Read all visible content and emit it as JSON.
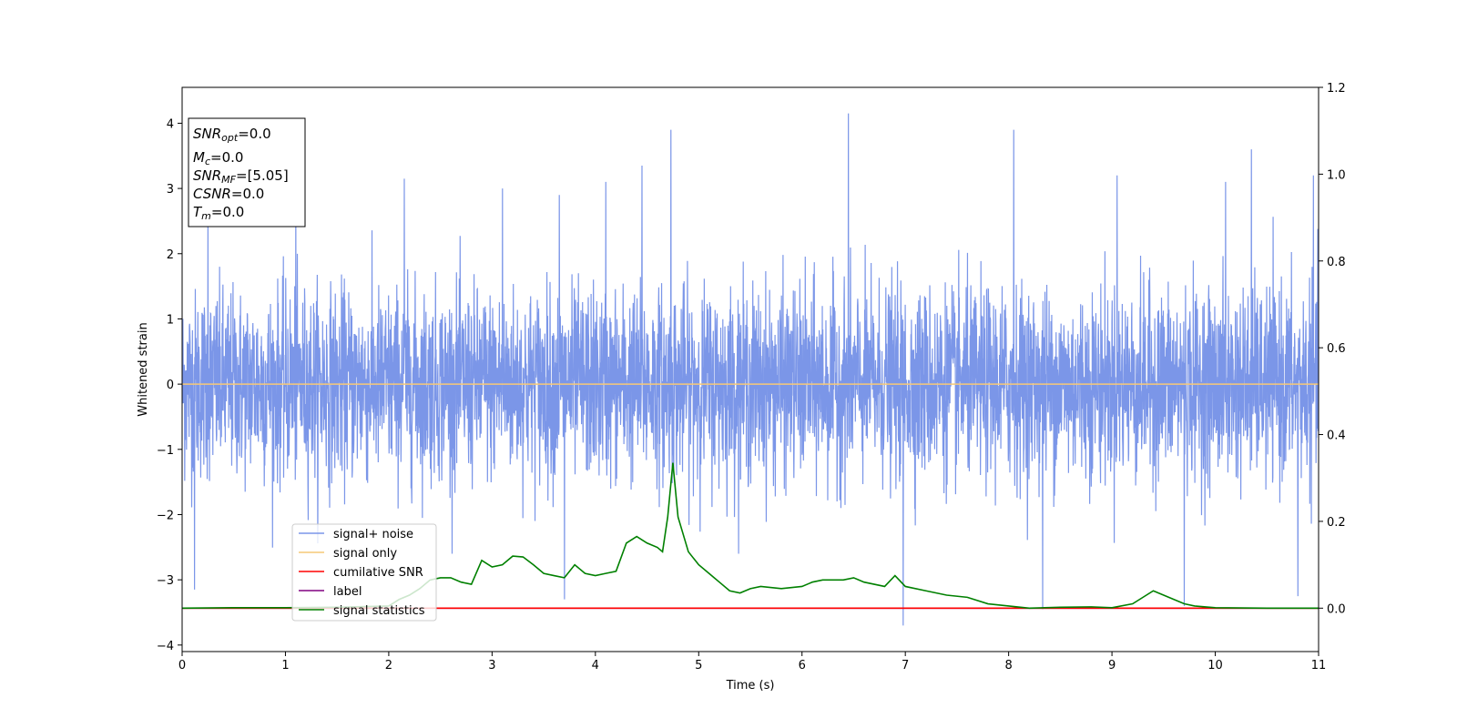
{
  "chart_data": {
    "type": "line",
    "title": "",
    "xlabel": "Time (s)",
    "ylabel": "Whitened strain",
    "xlim": [
      0,
      11
    ],
    "ylim": [
      -4.1,
      4.55
    ],
    "y2lim": [
      -0.1,
      1.2
    ],
    "grid": false,
    "x_ticks": [
      "0",
      "1",
      "2",
      "3",
      "4",
      "5",
      "6",
      "7",
      "8",
      "9",
      "10",
      "11"
    ],
    "y_ticks": [
      "−4",
      "−3",
      "−2",
      "−1",
      "0",
      "1",
      "2",
      "3",
      "4"
    ],
    "y2_ticks": [
      "0.0",
      "0.2",
      "0.4",
      "0.6",
      "0.8",
      "1.0",
      "1.2"
    ],
    "legend_position": "lower-left",
    "info_box": {
      "snr_opt": {
        "base": "SNR",
        "sub": "opt",
        "value": "=0.0"
      },
      "mc": {
        "base": "M",
        "sub": "c",
        "value": "=0.0"
      },
      "snr_mf": {
        "base": "SNR",
        "sub": "MF",
        "value": "=[5.05]"
      },
      "csnr": {
        "base": "CSNR",
        "value": "=0.0"
      },
      "tm": {
        "base": "T",
        "sub": "m",
        "value": "=0.0"
      }
    },
    "series": [
      {
        "name": "signal+ noise",
        "color": "#7b96e8",
        "axis": "left",
        "kind": "noise",
        "typical_amplitude": 1.0,
        "peaks": [
          {
            "x": 0.12,
            "y": -3.15
          },
          {
            "x": 0.25,
            "y": 2.6
          },
          {
            "x": 1.1,
            "y": 2.95
          },
          {
            "x": 2.15,
            "y": 3.15
          },
          {
            "x": 3.1,
            "y": 3.0
          },
          {
            "x": 3.65,
            "y": 2.9
          },
          {
            "x": 3.7,
            "y": -3.3
          },
          {
            "x": 4.1,
            "y": 3.1
          },
          {
            "x": 4.45,
            "y": 3.35
          },
          {
            "x": 4.73,
            "y": 3.9
          },
          {
            "x": 6.45,
            "y": 4.15
          },
          {
            "x": 6.98,
            "y": -3.7
          },
          {
            "x": 8.05,
            "y": 3.9
          },
          {
            "x": 8.33,
            "y": -3.45
          },
          {
            "x": 9.05,
            "y": 3.2
          },
          {
            "x": 9.7,
            "y": -3.4
          },
          {
            "x": 10.1,
            "y": 3.1
          },
          {
            "x": 10.35,
            "y": 3.6
          },
          {
            "x": 10.95,
            "y": 3.2
          },
          {
            "x": 10.8,
            "y": -3.25
          }
        ]
      },
      {
        "name": "signal only",
        "color": "#f5c877",
        "axis": "left",
        "x": [
          0,
          11
        ],
        "y": [
          0,
          0
        ]
      },
      {
        "name": "cumilative SNR",
        "color": "#ff0000",
        "axis": "right",
        "x": [
          0,
          11
        ],
        "y": [
          0,
          0
        ]
      },
      {
        "name": "label",
        "color": "#800080",
        "axis": "right",
        "x": [
          0,
          11
        ],
        "y": [
          0,
          0
        ]
      },
      {
        "name": "signal statistics",
        "color": "#008000",
        "axis": "right",
        "x": [
          0,
          0.5,
          1.0,
          1.5,
          2.0,
          2.1,
          2.2,
          2.3,
          2.4,
          2.5,
          2.6,
          2.7,
          2.8,
          2.9,
          3.0,
          3.1,
          3.2,
          3.3,
          3.4,
          3.5,
          3.6,
          3.7,
          3.8,
          3.9,
          4.0,
          4.1,
          4.2,
          4.3,
          4.4,
          4.5,
          4.6,
          4.65,
          4.7,
          4.75,
          4.8,
          4.9,
          5.0,
          5.1,
          5.2,
          5.3,
          5.4,
          5.5,
          5.6,
          5.8,
          6.0,
          6.1,
          6.2,
          6.4,
          6.5,
          6.6,
          6.8,
          6.9,
          7.0,
          7.2,
          7.4,
          7.6,
          7.8,
          8.0,
          8.2,
          8.5,
          8.8,
          9.0,
          9.2,
          9.3,
          9.4,
          9.5,
          9.6,
          9.7,
          9.8,
          10.0,
          10.5,
          11.0
        ],
        "y": [
          0.0,
          0.001,
          0.001,
          0.002,
          0.005,
          0.02,
          0.03,
          0.045,
          0.065,
          0.07,
          0.07,
          0.06,
          0.055,
          0.11,
          0.095,
          0.1,
          0.12,
          0.118,
          0.1,
          0.08,
          0.075,
          0.07,
          0.1,
          0.08,
          0.075,
          0.08,
          0.085,
          0.15,
          0.165,
          0.15,
          0.14,
          0.13,
          0.21,
          0.335,
          0.21,
          0.13,
          0.1,
          0.08,
          0.06,
          0.04,
          0.035,
          0.045,
          0.05,
          0.045,
          0.05,
          0.06,
          0.065,
          0.065,
          0.07,
          0.06,
          0.05,
          0.075,
          0.05,
          0.04,
          0.03,
          0.025,
          0.01,
          0.005,
          0.0,
          0.002,
          0.003,
          0.001,
          0.01,
          0.025,
          0.04,
          0.03,
          0.02,
          0.01,
          0.005,
          0.001,
          0.0,
          0.0
        ]
      }
    ]
  }
}
